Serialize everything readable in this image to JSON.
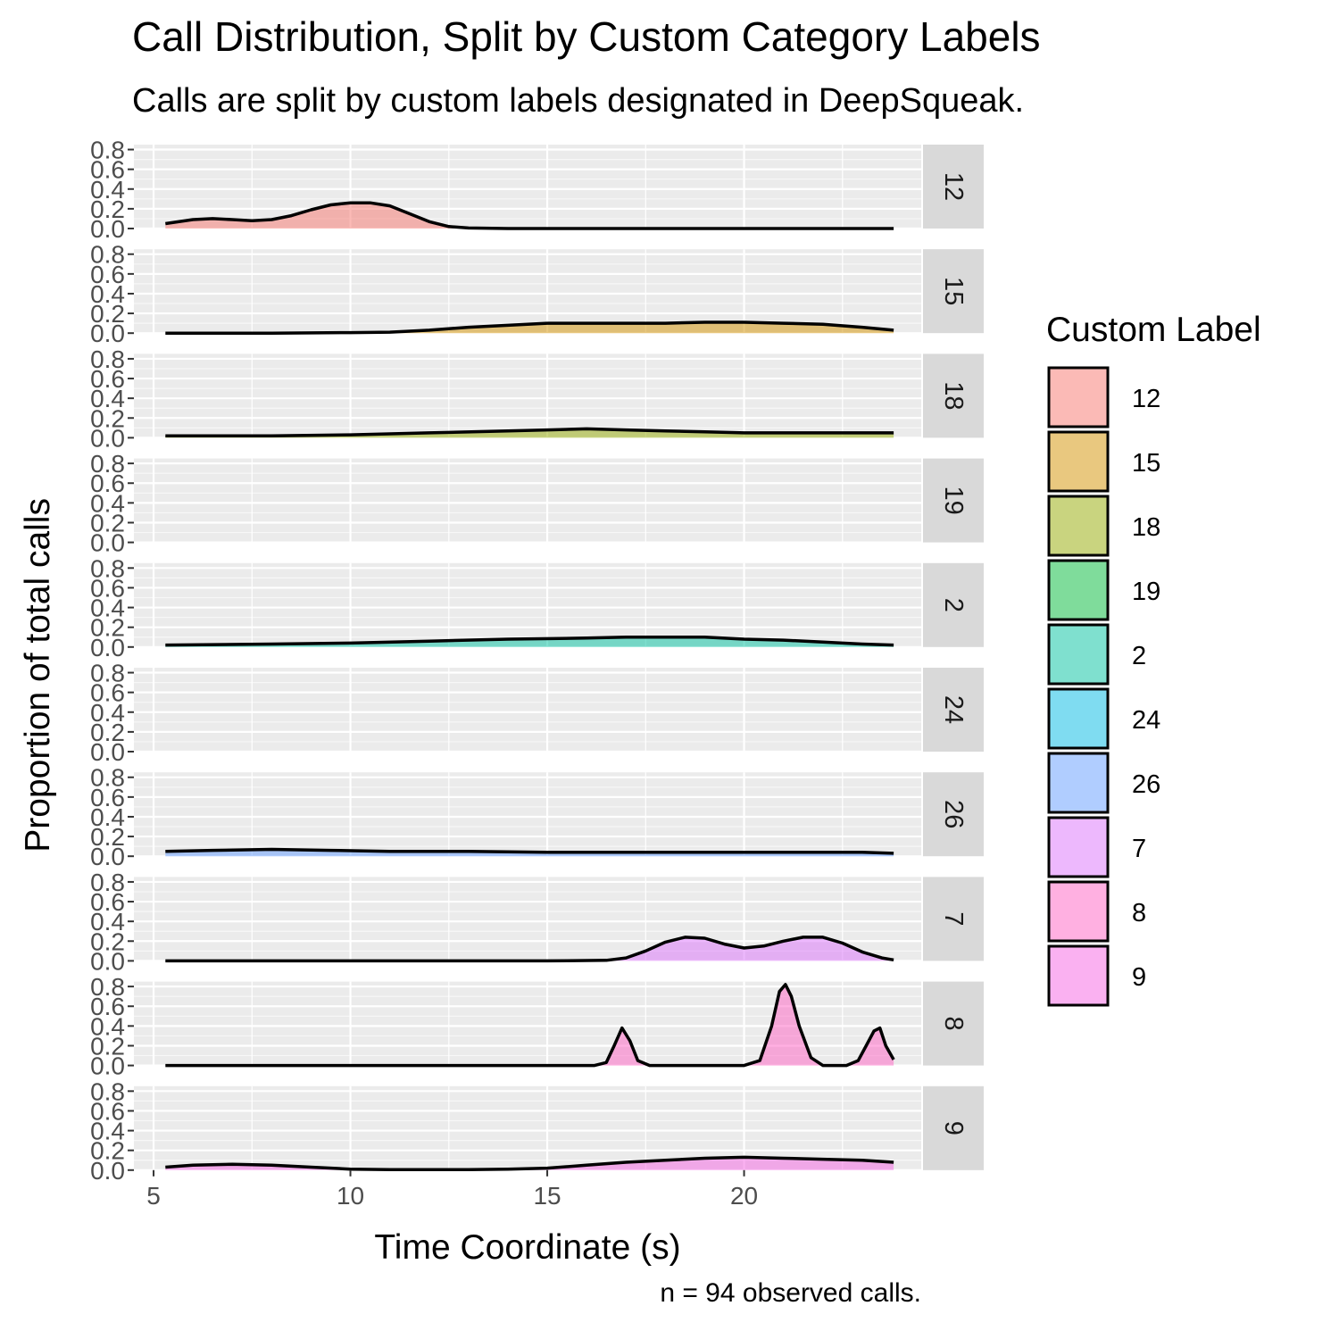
{
  "chart_data": {
    "type": "area",
    "title": "Call Distribution, Split by Custom Category Labels",
    "subtitle": "Calls are split by custom labels designated in DeepSqueak.",
    "caption": "n = 94 observed calls.",
    "xlabel": "Time Coordinate (s)",
    "ylabel": "Proportion of total calls",
    "xlim": [
      4.5,
      24.5
    ],
    "ylim": [
      0,
      0.85
    ],
    "x_ticks": [
      5,
      10,
      15,
      20
    ],
    "y_ticks": [
      0.0,
      0.2,
      0.4,
      0.6,
      0.8
    ],
    "y_tick_labels": [
      "0.0",
      "0.2",
      "0.4",
      "0.6",
      "0.8"
    ],
    "x_tick_labels": [
      "5",
      "10",
      "15",
      "20"
    ],
    "legend_title": "Custom Label",
    "legend_position": "right",
    "series": [
      {
        "name": "12",
        "color": "#F8766D",
        "x": [
          5.3,
          6.0,
          6.5,
          7.0,
          7.5,
          8.0,
          8.5,
          9.0,
          9.5,
          10.0,
          10.5,
          11.0,
          11.5,
          12.0,
          12.5,
          13.0,
          14.0,
          16.0,
          20.0,
          23.8
        ],
        "y": [
          0.05,
          0.09,
          0.1,
          0.09,
          0.08,
          0.09,
          0.13,
          0.19,
          0.24,
          0.26,
          0.26,
          0.23,
          0.15,
          0.07,
          0.02,
          0.005,
          0.0,
          0.0,
          0.0,
          0.0
        ]
      },
      {
        "name": "15",
        "color": "#D39200",
        "x": [
          5.3,
          8.0,
          10.0,
          11.0,
          12.0,
          13.0,
          14.0,
          15.0,
          16.0,
          17.0,
          18.0,
          19.0,
          20.0,
          21.0,
          22.0,
          23.0,
          23.8
        ],
        "y": [
          0.0,
          0.0,
          0.005,
          0.01,
          0.03,
          0.06,
          0.08,
          0.1,
          0.1,
          0.1,
          0.1,
          0.11,
          0.11,
          0.1,
          0.09,
          0.06,
          0.03
        ]
      },
      {
        "name": "18",
        "color": "#93AA00",
        "x": [
          5.3,
          8.0,
          10.0,
          12.0,
          14.0,
          15.0,
          16.0,
          17.0,
          18.0,
          19.0,
          20.0,
          21.0,
          22.0,
          23.0,
          23.8
        ],
        "y": [
          0.02,
          0.02,
          0.03,
          0.05,
          0.07,
          0.08,
          0.09,
          0.08,
          0.07,
          0.06,
          0.05,
          0.05,
          0.05,
          0.05,
          0.05
        ]
      },
      {
        "name": "19",
        "color": "#00BA38",
        "x": [],
        "y": []
      },
      {
        "name": "2",
        "color": "#00C19F",
        "x": [
          5.3,
          8.0,
          10.0,
          12.0,
          14.0,
          16.0,
          17.0,
          18.0,
          19.0,
          20.0,
          21.0,
          22.0,
          23.0,
          23.8
        ],
        "y": [
          0.02,
          0.03,
          0.04,
          0.06,
          0.08,
          0.09,
          0.1,
          0.1,
          0.1,
          0.08,
          0.07,
          0.05,
          0.03,
          0.02
        ]
      },
      {
        "name": "24",
        "color": "#00B9E3",
        "x": [],
        "y": []
      },
      {
        "name": "26",
        "color": "#619CFF",
        "x": [
          5.3,
          6.5,
          8.0,
          9.5,
          11.0,
          13.0,
          15.0,
          17.0,
          19.0,
          20.5,
          22.0,
          23.0,
          23.8
        ],
        "y": [
          0.05,
          0.06,
          0.07,
          0.06,
          0.05,
          0.05,
          0.04,
          0.04,
          0.04,
          0.04,
          0.04,
          0.04,
          0.03
        ]
      },
      {
        "name": "7",
        "color": "#DB72FB",
        "x": [
          5.3,
          10.0,
          15.0,
          16.5,
          17.0,
          17.5,
          18.0,
          18.5,
          19.0,
          19.5,
          20.0,
          20.5,
          21.0,
          21.5,
          22.0,
          22.5,
          23.0,
          23.5,
          23.8
        ],
        "y": [
          0.0,
          0.0,
          0.0,
          0.005,
          0.03,
          0.1,
          0.19,
          0.24,
          0.23,
          0.17,
          0.13,
          0.15,
          0.2,
          0.24,
          0.24,
          0.18,
          0.09,
          0.03,
          0.01
        ]
      },
      {
        "name": "8",
        "color": "#FF61C3",
        "x": [
          5.3,
          15.0,
          16.2,
          16.5,
          16.7,
          16.9,
          17.1,
          17.3,
          17.6,
          20.0,
          20.4,
          20.7,
          20.9,
          21.05,
          21.2,
          21.4,
          21.7,
          22.0,
          22.6,
          22.9,
          23.1,
          23.3,
          23.45,
          23.6,
          23.8
        ],
        "y": [
          0.0,
          0.0,
          0.0,
          0.03,
          0.2,
          0.38,
          0.25,
          0.05,
          0.0,
          0.0,
          0.05,
          0.4,
          0.75,
          0.82,
          0.7,
          0.4,
          0.08,
          0.0,
          0.0,
          0.05,
          0.2,
          0.35,
          0.38,
          0.2,
          0.06
        ]
      },
      {
        "name": "9",
        "color": "#F564E3",
        "x": [
          5.3,
          6.0,
          7.0,
          8.0,
          9.0,
          10.0,
          11.0,
          12.0,
          13.0,
          14.0,
          15.0,
          16.0,
          17.0,
          18.0,
          19.0,
          20.0,
          21.0,
          22.0,
          23.0,
          23.8
        ],
        "y": [
          0.03,
          0.05,
          0.06,
          0.05,
          0.03,
          0.01,
          0.005,
          0.005,
          0.005,
          0.01,
          0.02,
          0.05,
          0.08,
          0.1,
          0.12,
          0.13,
          0.12,
          0.11,
          0.1,
          0.08
        ]
      }
    ]
  }
}
